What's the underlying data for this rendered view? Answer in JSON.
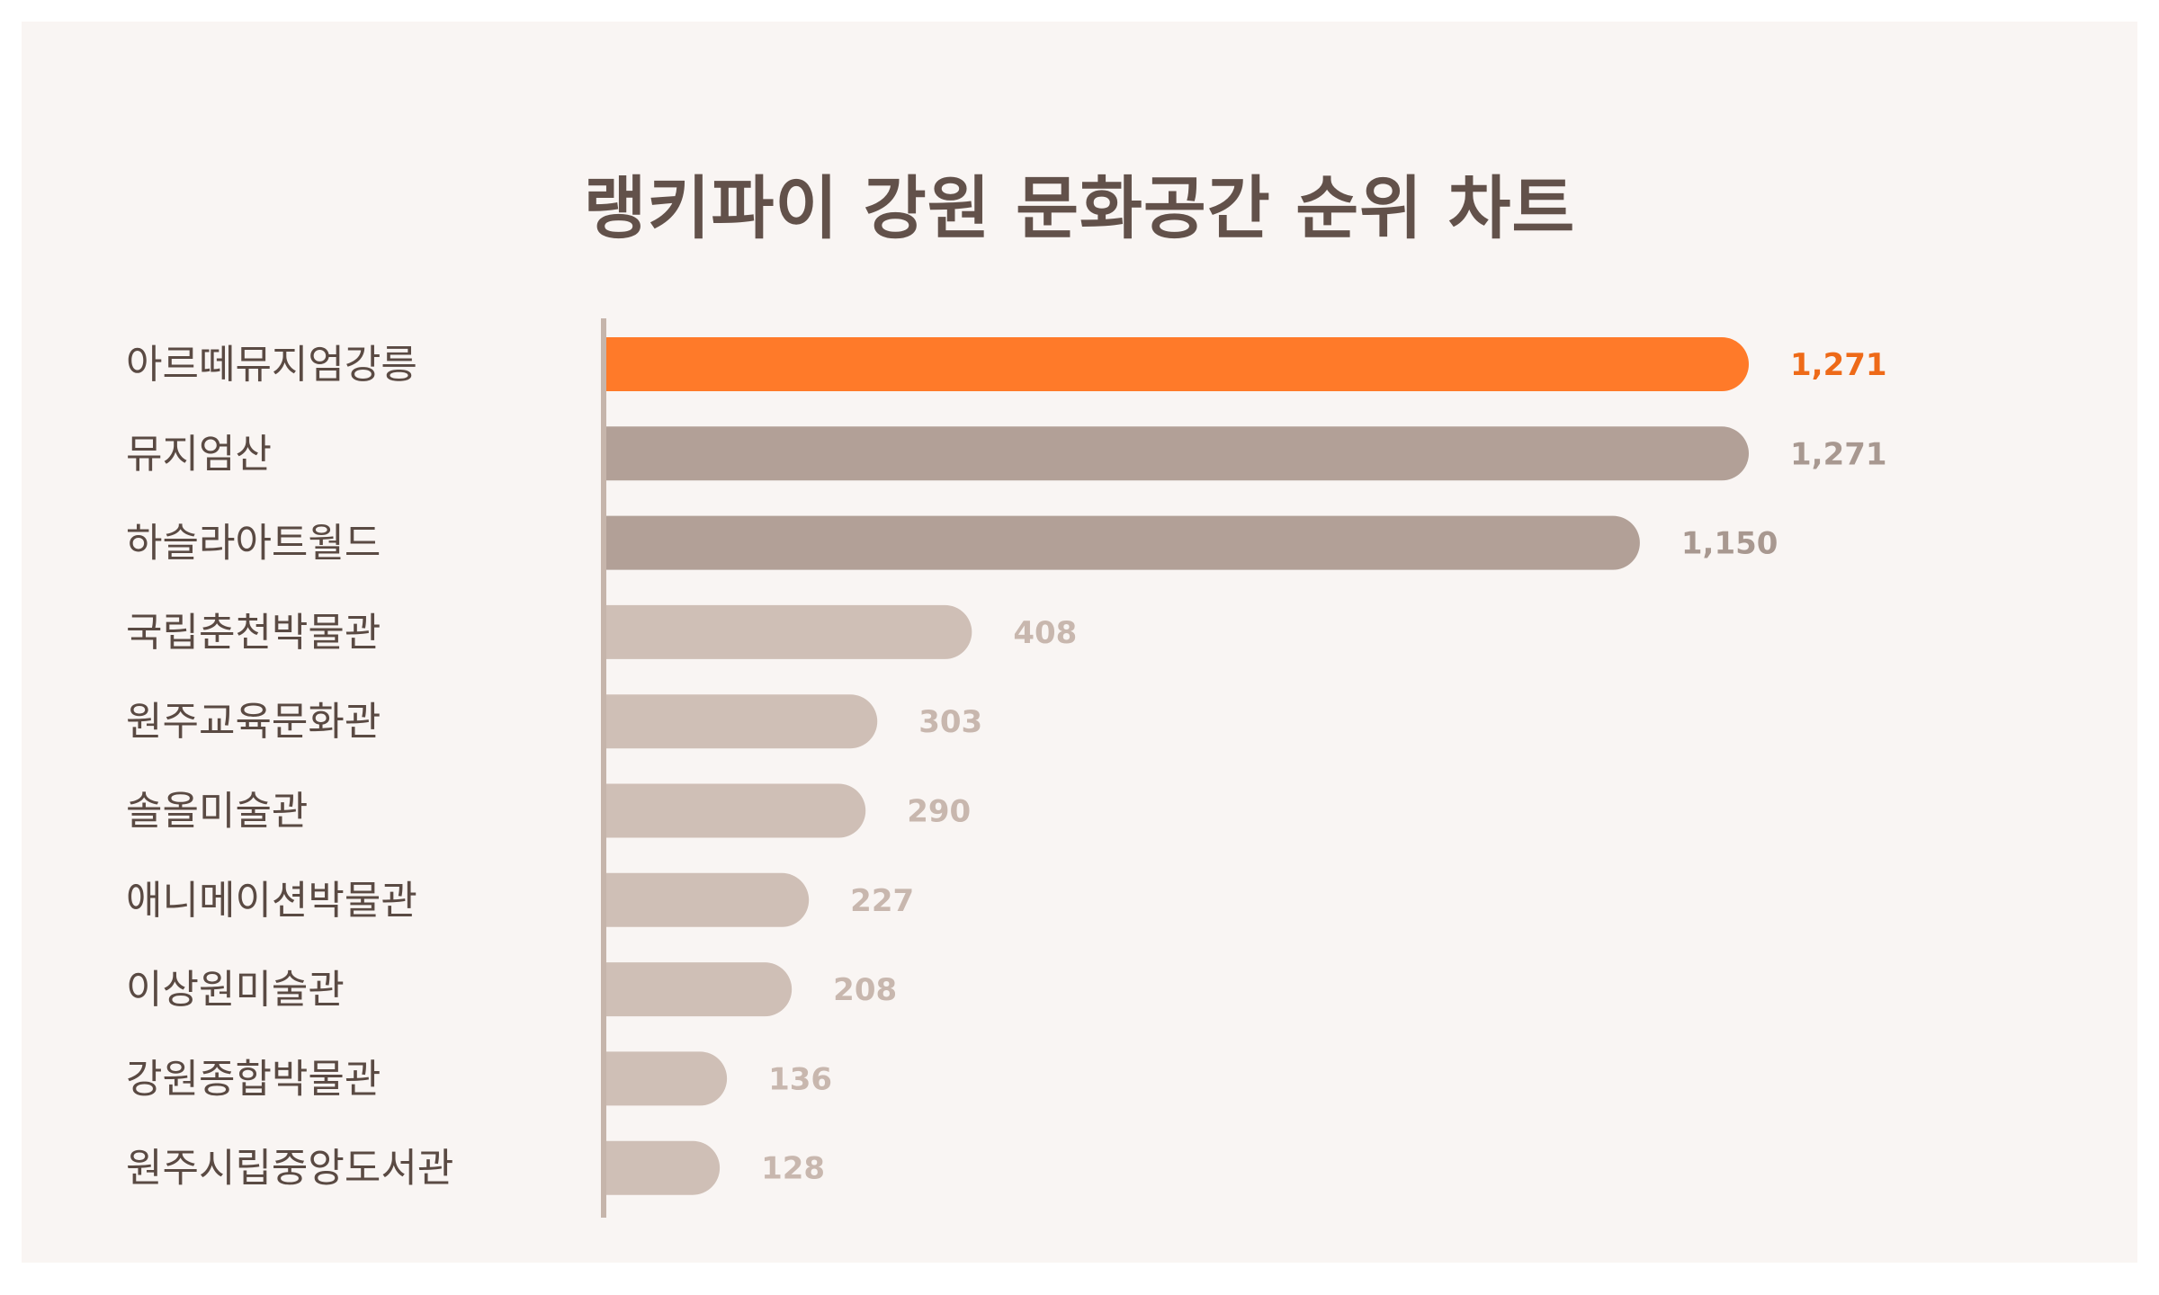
{
  "chart_data": {
    "type": "bar",
    "orientation": "horizontal",
    "title": "랭키파이 강원 문화공간 순위 차트",
    "categories": [
      "아르떼뮤지엄강릉",
      "뮤지엄산",
      "하슬라아트월드",
      "국립춘천박물관",
      "원주교육문화관",
      "솔올미술관",
      "애니메이션박물관",
      "이상원미술관",
      "강원종합박물관",
      "원주시립중앙도서관"
    ],
    "values": [
      1271,
      1271,
      1150,
      408,
      303,
      290,
      227,
      208,
      136,
      128
    ],
    "value_labels": [
      "1,271",
      "1,271",
      "1,150",
      "408",
      "303",
      "290",
      "227",
      "208",
      "136",
      "128"
    ],
    "xlim": [
      0,
      1271
    ],
    "grid": false,
    "legend": "none",
    "colors": {
      "highlight": "#ff7a29",
      "highlight_label": "#ee6a18",
      "top_tier": "#b2a097",
      "top_tier_label": "#a89890",
      "other": "#cfbfb6",
      "other_label": "#c8b7ae",
      "axis": "#c6b5ab",
      "category_text": "#5a4a43",
      "background": "#f9f5f3"
    }
  }
}
